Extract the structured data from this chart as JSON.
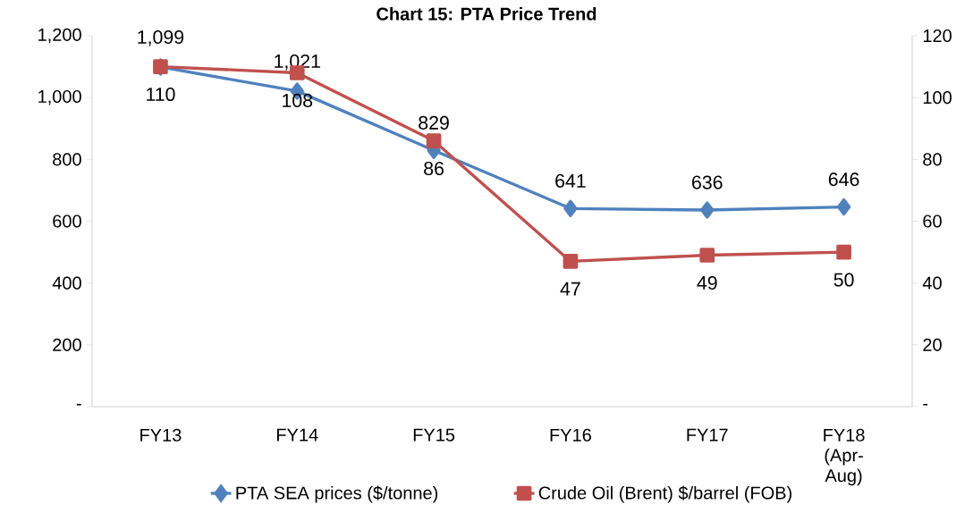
{
  "chart_data": {
    "type": "line",
    "title": "Chart 15: PTA Price Trend",
    "categories": [
      "FY13",
      "FY14",
      "FY15",
      "FY16",
      "FY17",
      "FY18 (Apr-Aug)"
    ],
    "series": [
      {
        "name": "PTA SEA prices ($/tonne)",
        "color": "#4f81bd",
        "marker": "diamond",
        "values": [
          1099,
          1021,
          829,
          641,
          636,
          646
        ],
        "value_labels": [
          "1,099",
          "1,021",
          "829",
          "641",
          "636",
          "646"
        ]
      },
      {
        "name": "Crude Oil (Brent) $/barrel (FOB)",
        "color": "#c0504d",
        "marker": "square",
        "axis": "y2",
        "values": [
          110,
          108,
          86,
          47,
          49,
          50
        ],
        "value_labels": [
          "110",
          "108",
          "86",
          "47",
          "49",
          "50"
        ]
      }
    ],
    "ylim": [
      0,
      1200
    ],
    "yticks": [
      {
        "value": 0,
        "label": "-"
      },
      {
        "value": 200,
        "label": "200"
      },
      {
        "value": 400,
        "label": "400"
      },
      {
        "value": 600,
        "label": "600"
      },
      {
        "value": 800,
        "label": "800"
      },
      {
        "value": 1000,
        "label": "1,000"
      },
      {
        "value": 1200,
        "label": "1,200"
      }
    ],
    "y2lim": [
      0,
      120
    ],
    "y2ticks": [
      {
        "value": 0,
        "label": "-"
      },
      20,
      40,
      60,
      80,
      100,
      120
    ],
    "grid": false,
    "legend": "bottom"
  }
}
